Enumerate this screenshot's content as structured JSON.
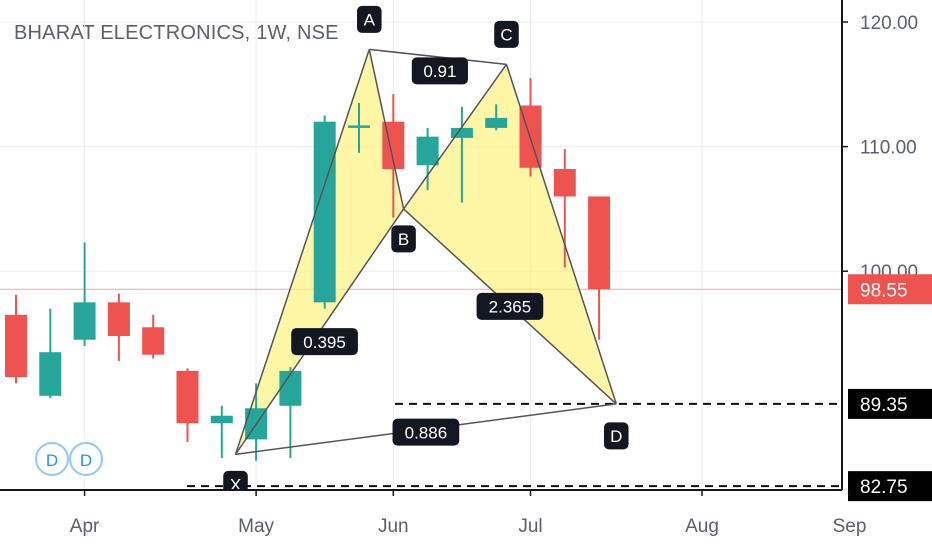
{
  "header": {
    "title": "BHARAT ELECTRONICS, 1W, NSE"
  },
  "colors": {
    "up": "#26a69a",
    "down": "#ef5350",
    "pattern_fill": "#fff176",
    "pattern_line": "#555555",
    "last_price": "#ef5350",
    "grid": "#eeeeee",
    "text": "#5d606b"
  },
  "chart_data": {
    "type": "candlestick",
    "title": "BHARAT ELECTRONICS, 1W, NSE",
    "ylim": [
      79,
      124
    ],
    "y_ticks": [
      "120.00",
      "110.00",
      "100.00"
    ],
    "x_ticks": [
      "Apr",
      "May",
      "Jun",
      "Jul",
      "Aug",
      "Sep"
    ],
    "candles": [
      {
        "week": 0,
        "open": 96.5,
        "high": 98.1,
        "low": 91.0,
        "close": 91.5
      },
      {
        "week": 1,
        "open": 90.0,
        "high": 97.0,
        "low": 89.8,
        "close": 93.5
      },
      {
        "week": 2,
        "open": 94.5,
        "high": 102.3,
        "low": 94.0,
        "close": 97.5
      },
      {
        "week": 3,
        "open": 97.5,
        "high": 98.2,
        "low": 92.8,
        "close": 94.8
      },
      {
        "week": 4,
        "open": 95.5,
        "high": 96.5,
        "low": 93.0,
        "close": 93.3
      },
      {
        "week": 5,
        "open": 92.0,
        "high": 92.2,
        "low": 86.3,
        "close": 87.8
      },
      {
        "week": 6,
        "open": 87.8,
        "high": 89.2,
        "low": 85.0,
        "close": 88.4
      },
      {
        "week": 7,
        "open": 86.5,
        "high": 91.0,
        "low": 84.8,
        "close": 89.0
      },
      {
        "week": 8,
        "open": 89.2,
        "high": 92.3,
        "low": 85.0,
        "close": 92.0
      },
      {
        "week": 9,
        "open": 97.5,
        "high": 112.5,
        "low": 97.0,
        "close": 112.0
      },
      {
        "week": 10,
        "open": 111.5,
        "high": 113.5,
        "low": 109.5,
        "close": 111.7
      },
      {
        "week": 11,
        "open": 112.0,
        "high": 114.2,
        "low": 104.3,
        "close": 108.2
      },
      {
        "week": 12,
        "open": 108.5,
        "high": 111.5,
        "low": 106.5,
        "close": 110.8
      },
      {
        "week": 13,
        "open": 110.7,
        "high": 113.2,
        "low": 105.5,
        "close": 111.5
      },
      {
        "week": 14,
        "open": 111.5,
        "high": 113.4,
        "low": 111.3,
        "close": 112.3
      },
      {
        "week": 15,
        "open": 113.3,
        "high": 115.5,
        "low": 107.6,
        "close": 108.3
      },
      {
        "week": 16,
        "open": 108.2,
        "high": 109.8,
        "low": 100.3,
        "close": 106.0
      },
      {
        "week": 17,
        "open": 106.0,
        "high": 106.0,
        "low": 94.5,
        "close": 98.55
      }
    ],
    "pattern": {
      "type": "harmonic-xabcd",
      "points": [
        {
          "label": "X",
          "week": 6.4,
          "price": 85.3
        },
        {
          "label": "A",
          "week": 10.3,
          "price": 117.8
        },
        {
          "label": "B",
          "week": 11.3,
          "price": 105.0
        },
        {
          "label": "C",
          "week": 14.3,
          "price": 116.6
        },
        {
          "label": "D",
          "week": 17.5,
          "price": 89.35
        }
      ],
      "ratios": [
        {
          "label": "0.395",
          "from": "X",
          "to": "B"
        },
        {
          "label": "0.91",
          "from": "A",
          "to": "C"
        },
        {
          "label": "2.365",
          "from": "B",
          "to": "D"
        },
        {
          "label": "0.886",
          "from": "X",
          "to": "D"
        }
      ]
    },
    "horizontal_lines": [
      {
        "price": 89.35,
        "label": "89.35",
        "style": "dashed"
      },
      {
        "price": 82.75,
        "label": "82.75",
        "style": "dashed"
      }
    ],
    "last_price": {
      "price": 98.55,
      "label": "98.55"
    },
    "dividend_markers": [
      "D",
      "D"
    ]
  }
}
